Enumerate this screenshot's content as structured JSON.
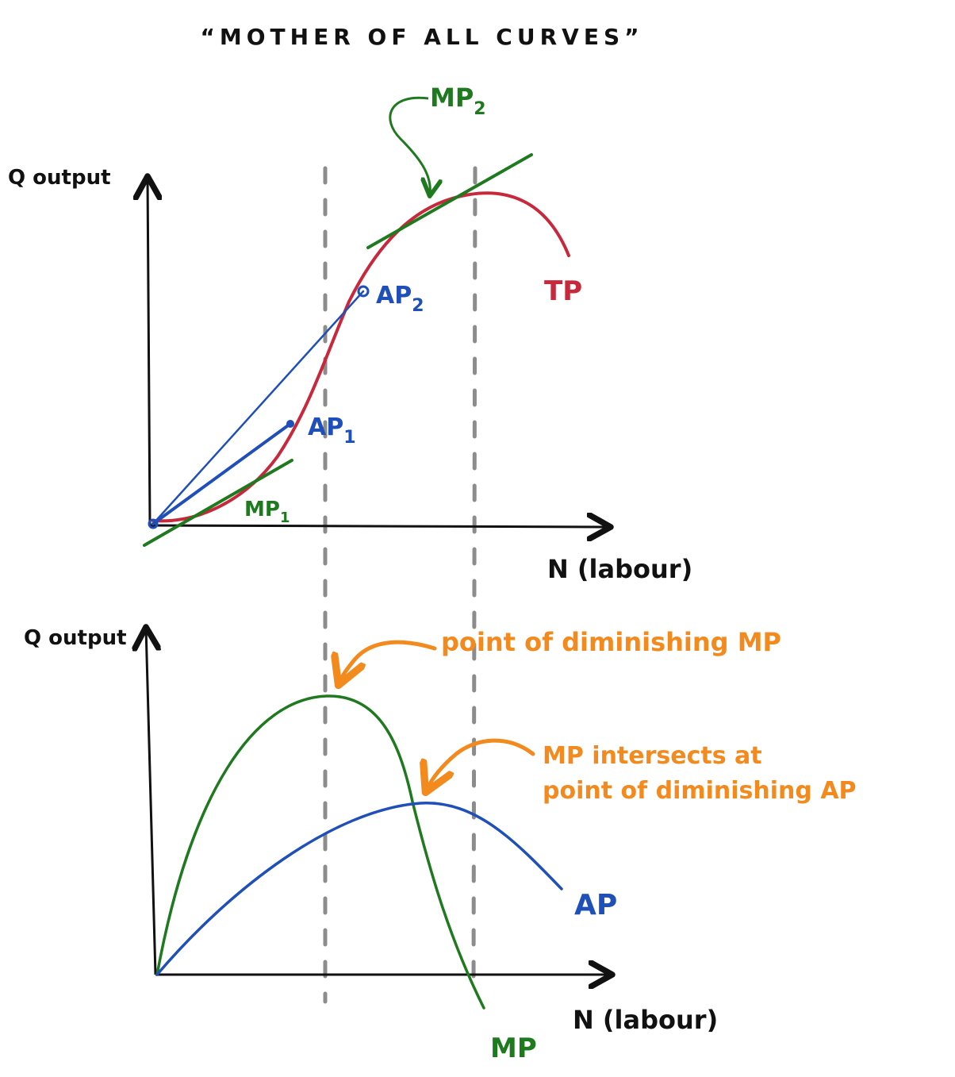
{
  "title": "“MOTHER OF ALL CURVES”",
  "colors": {
    "axis": "#111111",
    "tp": "#c8283c",
    "mp": "#1f7a1f",
    "ap": "#1f4fb8",
    "annotation": "#f28a1e",
    "guide": "#8c8c8c"
  },
  "top_chart": {
    "ylabel": "Q output",
    "xlabel": "N (labour)",
    "curve_label_tp": "TP",
    "mp1_label": "MP",
    "mp1_sub": "1",
    "mp2_label": "MP",
    "mp2_sub": "2",
    "ap1_label": "AP",
    "ap1_sub": "1",
    "ap2_label": "AP",
    "ap2_sub": "2"
  },
  "bottom_chart": {
    "ylabel": "Q output",
    "xlabel": "N (labour)",
    "curve_label_ap": "AP",
    "curve_label_mp": "MP"
  },
  "annotations": {
    "diminishing_mp": "point of diminishing MP",
    "intersect_line1": "MP intersects at",
    "intersect_line2": "point of diminishing AP"
  }
}
